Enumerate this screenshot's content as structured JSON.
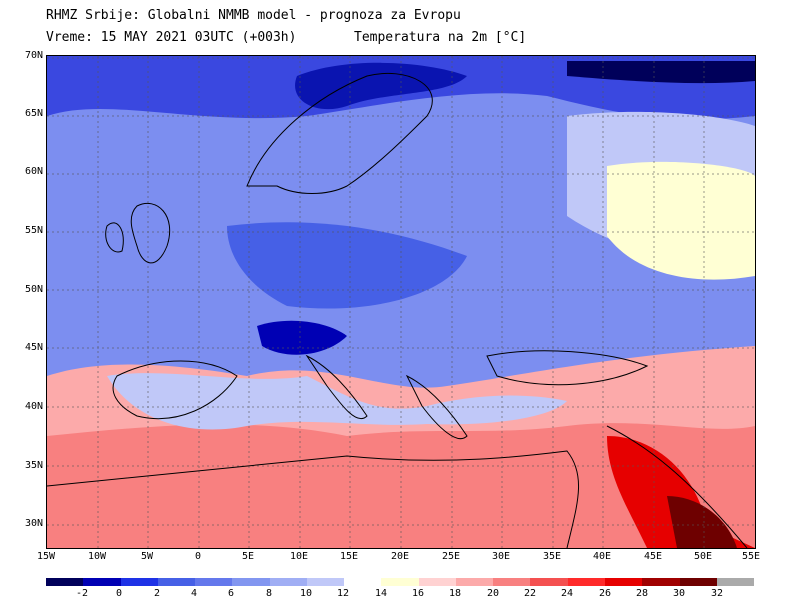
{
  "header": {
    "line1": "RHMZ Srbije: Globalni NMMB model - prognoza za Evropu",
    "line2": "Vreme: 15 MAY 2021 03UTC (+003h)",
    "line2_right": "Temperatura na 2m [°C]"
  },
  "map": {
    "lat_labels": [
      "70N",
      "65N",
      "60N",
      "55N",
      "50N",
      "45N",
      "40N",
      "35N",
      "30N"
    ],
    "lon_labels": [
      "15W",
      "10W",
      "5W",
      "0",
      "5E",
      "10E",
      "15E",
      "20E",
      "25E",
      "30E",
      "35E",
      "40E",
      "45E",
      "50E",
      "55E"
    ]
  },
  "legend": {
    "colors": [
      "#00005a",
      "#0000b4",
      "#1e32e6",
      "#4660e6",
      "#6478ec",
      "#8296f0",
      "#a0aef4",
      "#c0c8f8",
      "#ffffff",
      "#ffffd4",
      "#ffd2d2",
      "#fcaaaa",
      "#f88080",
      "#f45050",
      "#ff2a2a",
      "#e60000",
      "#a00000",
      "#6e0000",
      "#aaaaaa"
    ],
    "labels": [
      "-2",
      "0",
      "2",
      "4",
      "6",
      "8",
      "10",
      "12",
      "14",
      "16",
      "18",
      "20",
      "22",
      "24",
      "26",
      "28",
      "30",
      "32"
    ]
  }
}
